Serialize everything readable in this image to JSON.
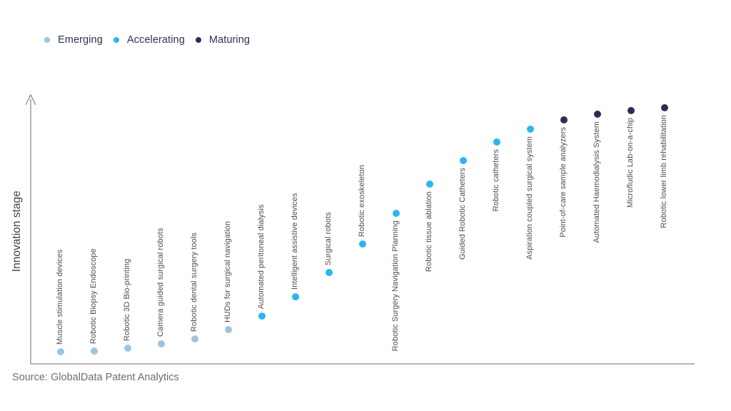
{
  "source": "Source: GlobalData Patent Analytics",
  "chart_data": {
    "type": "scatter",
    "title": "",
    "xlabel": "",
    "ylabel": "Innovation stage",
    "ylim": [
      0,
      100
    ],
    "grid": false,
    "y_ticks": [],
    "legend": {
      "position": "top-left",
      "entries": [
        "Emerging",
        "Accelerating",
        "Maturing"
      ]
    },
    "stages": [
      {
        "name": "Emerging",
        "color": "#9dc6de"
      },
      {
        "name": "Accelerating",
        "color": "#29b6f2"
      },
      {
        "name": "Maturing",
        "color": "#332a54"
      }
    ],
    "points": [
      {
        "label": "Muscle stimulation devices",
        "stage": "Emerging",
        "value": 4.5
      },
      {
        "label": "Robotic Biopsy Endoscope",
        "stage": "Emerging",
        "value": 5
      },
      {
        "label": "Robotic 3D Bio-printing",
        "stage": "Emerging",
        "value": 6
      },
      {
        "label": "Camera guided surgical robots",
        "stage": "Emerging",
        "value": 7.5
      },
      {
        "label": "Robotic dental surgery tools",
        "stage": "Emerging",
        "value": 9.5
      },
      {
        "label": "HUDs for surgical navigation",
        "stage": "Emerging",
        "value": 13
      },
      {
        "label": "Automated peritoneal dialysis",
        "stage": "Accelerating",
        "value": 18
      },
      {
        "label": "Intelligent assistive devices",
        "stage": "Accelerating",
        "value": 25.5
      },
      {
        "label": "Surgical robots",
        "stage": "Accelerating",
        "value": 34.5
      },
      {
        "label": "Robotic exoskeleton",
        "stage": "Accelerating",
        "value": 45.5
      },
      {
        "label": "Robotic Surgery Navigation Planning",
        "stage": "Accelerating",
        "value": 57
      },
      {
        "label": "Robotic tissue ablation",
        "stage": "Accelerating",
        "value": 68
      },
      {
        "label": "Guided Robotic Catheters",
        "stage": "Accelerating",
        "value": 77
      },
      {
        "label": "Robotic catheters",
        "stage": "Accelerating",
        "value": 84
      },
      {
        "label": "Aspiration coupled surgical system",
        "stage": "Accelerating",
        "value": 89
      },
      {
        "label": "Point-of-care sample analyzers",
        "stage": "Maturing",
        "value": 92.5
      },
      {
        "label": "Automated Haemodialysis System",
        "stage": "Maturing",
        "value": 94.5
      },
      {
        "label": "Microfludic Lab-on-a-chip",
        "stage": "Maturing",
        "value": 96
      },
      {
        "label": "Robotic lower limb rehabilitation",
        "stage": "Maturing",
        "value": 97
      }
    ]
  }
}
